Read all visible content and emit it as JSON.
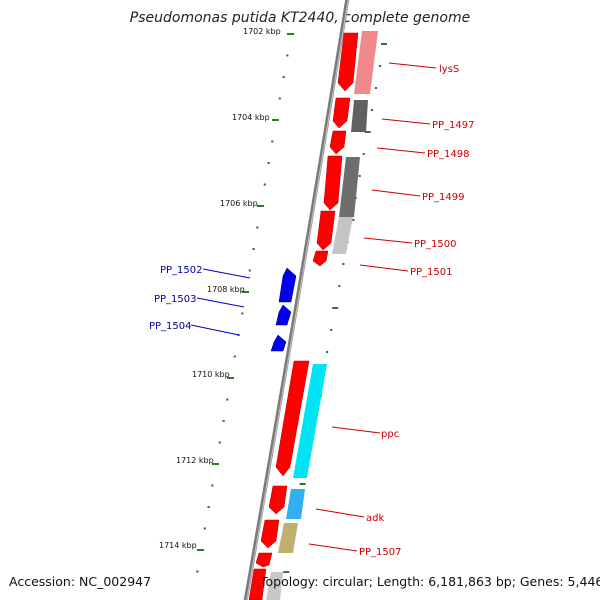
{
  "title": "Pseudomonas putida KT2440, complete genome",
  "accession_text": "Accession: NC_002947",
  "summary_text": "Topology: circular; Length: 6,181,863 bp; Genes: 5,446",
  "scale_labels": [
    "1702 kbp",
    "1704 kbp",
    "1706 kbp",
    "1708 kbp",
    "1710 kbp",
    "1712 kbp",
    "1714 kbp"
  ],
  "genes": [
    {
      "name": "lysS",
      "strand": "forward",
      "color": "#cc0000"
    },
    {
      "name": "PP_1497",
      "strand": "forward",
      "color": "#cc0000"
    },
    {
      "name": "PP_1498",
      "strand": "forward",
      "color": "#cc0000"
    },
    {
      "name": "PP_1499",
      "strand": "forward",
      "color": "#cc0000"
    },
    {
      "name": "PP_1500",
      "strand": "forward",
      "color": "#cc0000"
    },
    {
      "name": "PP_1501",
      "strand": "forward",
      "color": "#cc0000"
    },
    {
      "name": "PP_1502",
      "strand": "reverse",
      "color": "#000099"
    },
    {
      "name": "PP_1503",
      "strand": "reverse",
      "color": "#000099"
    },
    {
      "name": "PP_1504",
      "strand": "reverse",
      "color": "#000099"
    },
    {
      "name": "ppc",
      "strand": "forward",
      "color": "#cc0000"
    },
    {
      "name": "adk",
      "strand": "forward",
      "color": "#cc0000"
    },
    {
      "name": "PP_1507",
      "strand": "forward",
      "color": "#cc0000"
    }
  ],
  "colors": {
    "forward_gene": "#ff0000",
    "reverse_gene": "#0000ee",
    "tick": "#2a7a2a",
    "backbone": "#808080",
    "cog_pink": "#f08080",
    "cog_dark_gray": "#606060",
    "cog_light_gray": "#c0c0c0",
    "cog_cyan": "#00e0f0",
    "cog_sky": "#30b0f0",
    "cog_khaki": "#c0b070"
  }
}
